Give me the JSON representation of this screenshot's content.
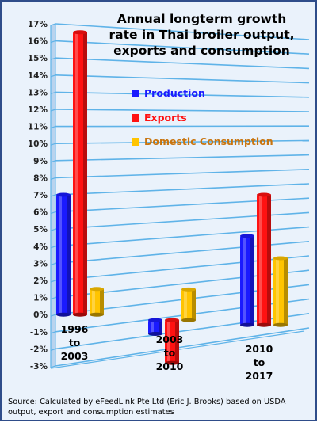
{
  "chart_data": {
    "type": "bar",
    "title_lines": [
      "Annual longterm growth",
      "rate in Thai broiler output,",
      "exports and consumption"
    ],
    "categories": [
      {
        "lines": [
          "1996",
          "to",
          "2003"
        ]
      },
      {
        "lines": [
          "2003",
          "to",
          "2010"
        ]
      },
      {
        "lines": [
          "2010",
          "to",
          "2017"
        ]
      }
    ],
    "series": [
      {
        "name": "Production",
        "color": "#1a1aff",
        "values": [
          7.0,
          -0.8,
          5.2
        ]
      },
      {
        "name": "Exports",
        "color": "#ff1111",
        "values": [
          16.5,
          -2.5,
          7.6
        ]
      },
      {
        "name": "Domestic Consumption",
        "color": "#ffc400",
        "values": [
          1.5,
          1.8,
          3.9
        ]
      }
    ],
    "ylim": [
      -3,
      17
    ],
    "yticks": [
      "-3%",
      "-2%",
      "-1%",
      "0%",
      "1%",
      "2%",
      "3%",
      "4%",
      "5%",
      "6%",
      "7%",
      "8%",
      "9%",
      "10%",
      "11%",
      "12%",
      "13%",
      "14%",
      "15%",
      "16%",
      "17%"
    ],
    "legend_text_colors": [
      "#1a1aff",
      "#ff1111",
      "#c8740e"
    ],
    "grid": true,
    "legend_position": "center-right",
    "source": "Source: Calculated by eFeedLink Pte Ltd (Eric J. Brooks) based on USDA output, export and consumption estimates"
  }
}
